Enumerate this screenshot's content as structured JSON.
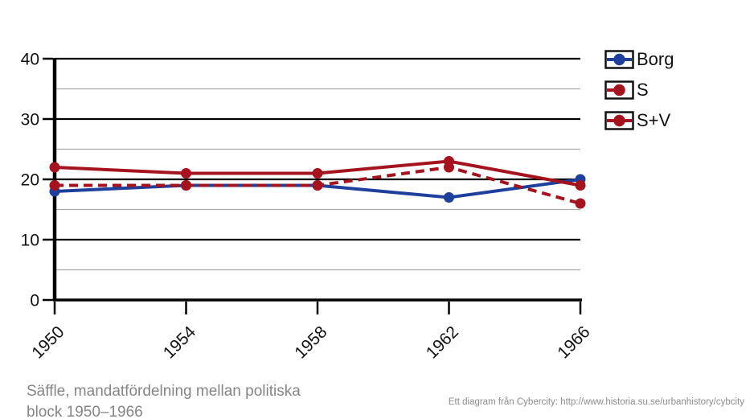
{
  "title": {
    "line1": "Säffle, mandatfördelning mellan politiska",
    "line2": "block 1950–1966"
  },
  "footer": {
    "credit": "Ett diagram från Cybercity: http://www.historia.su.se/urbanhistory/cybcity"
  },
  "colors": {
    "borg_blue": "#1e3f9b",
    "s_red": "#a5131f",
    "grid_major": "#000000",
    "grid_minor": "#aaaaaa",
    "axis_black": "#000000",
    "title_gray": "#858585",
    "footer_gray": "#8c8c8c",
    "legend_box_border": "#111111",
    "background": "#ffffff"
  },
  "chart_data": {
    "type": "line",
    "categories": [
      "1950",
      "1954",
      "1958",
      "1962",
      "1966"
    ],
    "series": [
      {
        "name": "Borg",
        "color": "#1e3f9b",
        "line_style": "solid",
        "marker": "circle",
        "values": [
          18,
          19,
          19,
          17,
          20
        ]
      },
      {
        "name": "S",
        "color": "#a5131f",
        "line_style": "dashed",
        "marker": "circle",
        "values": [
          19,
          19,
          19,
          22,
          16
        ]
      },
      {
        "name": "S+V",
        "color": "#a5131f",
        "line_style": "solid",
        "marker": "circle",
        "values": [
          22,
          21,
          21,
          23,
          19
        ]
      }
    ],
    "xlabel": "",
    "ylabel": "",
    "ylim": [
      0,
      40
    ],
    "y_major_ticks": [
      0,
      10,
      20,
      30,
      40
    ],
    "y_minor_ticks": [
      5,
      15,
      25,
      35
    ],
    "grid": true,
    "legend_position": "top-right"
  }
}
